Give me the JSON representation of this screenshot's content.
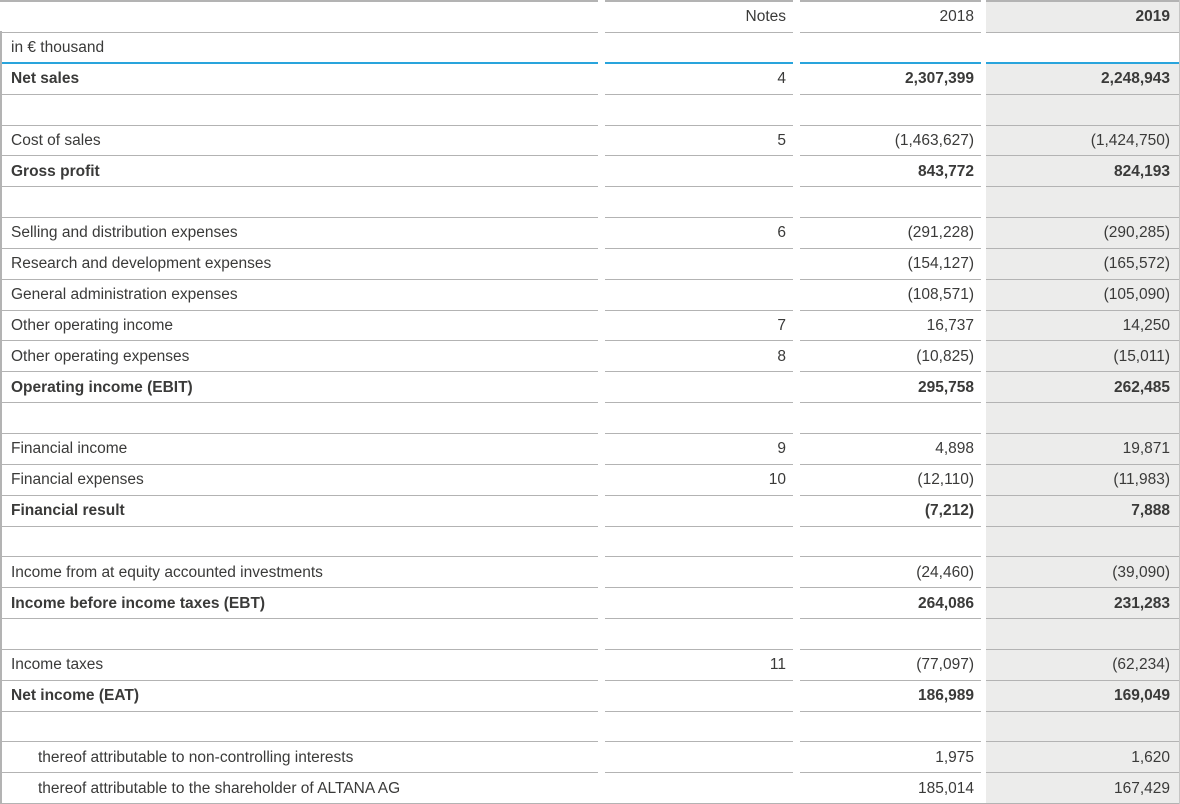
{
  "colors": {
    "accent_rule": "#29a4dc",
    "highlight_column_bg": "#ececeb",
    "separator_line": "#b3b3b3",
    "text": "#3a3a39"
  },
  "table": {
    "header": {
      "notes": "Notes",
      "col2018": "2018",
      "col2019": "2019"
    },
    "unit_row": {
      "label": "in € thousand"
    },
    "rows": [
      {
        "label": "Net sales",
        "notes": "4",
        "v2018": "2,307,399",
        "v2019": "2,248,943",
        "bold": true
      },
      {
        "spacer": true
      },
      {
        "label": "Cost of sales",
        "notes": "5",
        "v2018": "(1,463,627)",
        "v2019": "(1,424,750)"
      },
      {
        "label": "Gross profit",
        "notes": "",
        "v2018": "843,772",
        "v2019": "824,193",
        "bold": true
      },
      {
        "spacer": true
      },
      {
        "label": "Selling and distribution expenses",
        "notes": "6",
        "v2018": "(291,228)",
        "v2019": "(290,285)"
      },
      {
        "label": "Research and development expenses",
        "notes": "",
        "v2018": "(154,127)",
        "v2019": "(165,572)"
      },
      {
        "label": "General administration expenses",
        "notes": "",
        "v2018": "(108,571)",
        "v2019": "(105,090)"
      },
      {
        "label": "Other operating income",
        "notes": "7",
        "v2018": "16,737",
        "v2019": "14,250"
      },
      {
        "label": "Other operating expenses",
        "notes": "8",
        "v2018": "(10,825)",
        "v2019": "(15,011)"
      },
      {
        "label": "Operating income (EBIT)",
        "notes": "",
        "v2018": "295,758",
        "v2019": "262,485",
        "bold": true
      },
      {
        "spacer": true
      },
      {
        "label": "Financial income",
        "notes": "9",
        "v2018": "4,898",
        "v2019": "19,871"
      },
      {
        "label": "Financial expenses",
        "notes": "10",
        "v2018": "(12,110)",
        "v2019": "(11,983)"
      },
      {
        "label": "Financial result",
        "notes": "",
        "v2018": "(7,212)",
        "v2019": "7,888",
        "bold": true
      },
      {
        "spacer": true
      },
      {
        "label": "Income from at equity accounted investments",
        "notes": "",
        "v2018": "(24,460)",
        "v2019": "(39,090)"
      },
      {
        "label": "Income before income taxes (EBT)",
        "notes": "",
        "v2018": "264,086",
        "v2019": "231,283",
        "bold": true
      },
      {
        "spacer": true
      },
      {
        "label": "Income taxes",
        "notes": "11",
        "v2018": "(77,097)",
        "v2019": "(62,234)"
      },
      {
        "label": "Net income (EAT)",
        "notes": "",
        "v2018": "186,989",
        "v2019": "169,049",
        "bold": true
      },
      {
        "spacer": true
      },
      {
        "label": "thereof attributable to non-controlling interests",
        "notes": "",
        "v2018": "1,975",
        "v2019": "1,620",
        "indent": true
      },
      {
        "label": "thereof attributable to the shareholder of ALTANA AG",
        "notes": "",
        "v2018": "185,014",
        "v2019": "167,429",
        "indent": true
      }
    ]
  }
}
